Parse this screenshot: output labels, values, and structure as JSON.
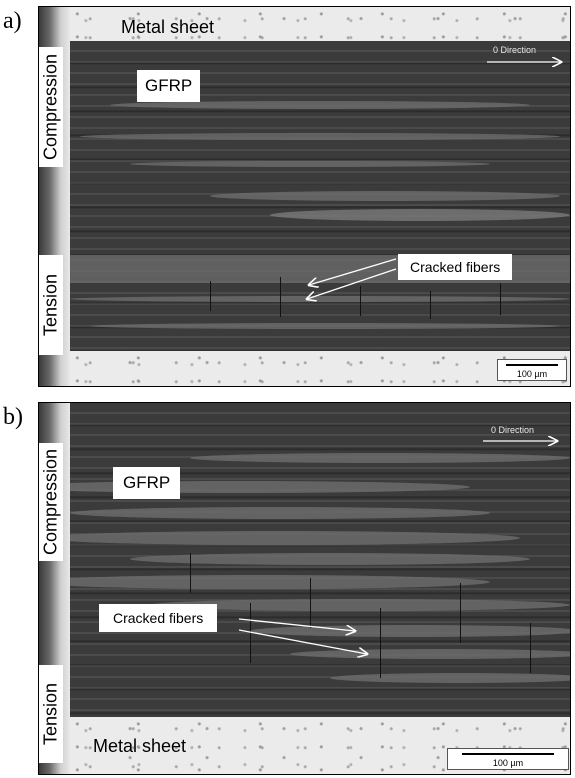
{
  "panel_a": {
    "letter": "a)",
    "metal_label": "Metal sheet",
    "material_label": "GFRP",
    "direction_label": "0 Direction",
    "crack_label": "Cracked fibers",
    "side_top": "Compression",
    "side_bottom": "Tension",
    "scale": "100 µm"
  },
  "panel_b": {
    "letter": "b)",
    "metal_label": "Metal sheet",
    "material_label": "GFRP",
    "direction_label": "0 Direction",
    "crack_label": "Cracked fibers",
    "side_top": "Compression",
    "side_bottom": "Tension",
    "scale": "100 µm"
  },
  "colors": {
    "gfrp": "#3b3b3b",
    "fiber_lens": "#6e6e6e",
    "metal": "#ebebeb",
    "arrow": "#ffffff"
  }
}
